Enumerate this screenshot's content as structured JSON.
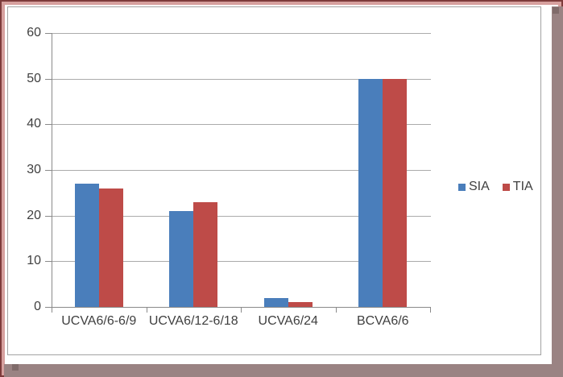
{
  "frame": {
    "outer_border_color": "#7E3B3B",
    "inner_border_color": "#D7A09E",
    "shadow_color": "#9A8383",
    "shadow_notch_color": "#806B6A",
    "box_border_color": "#A3A3A3",
    "background": "#FFFFFF"
  },
  "chart_data": {
    "type": "bar",
    "categories": [
      "UCVA6/6-6/9",
      "UCVA6/12-6/18",
      "UCVA6/24",
      "BCVA6/6"
    ],
    "series": [
      {
        "name": "SIA",
        "color": "#4A7EBB",
        "values": [
          27,
          21,
          2,
          50
        ]
      },
      {
        "name": "TIA",
        "color": "#BE4B48",
        "values": [
          26,
          23,
          1,
          50
        ]
      }
    ],
    "title": "",
    "xlabel": "",
    "ylabel": "",
    "ylim": [
      0,
      60
    ],
    "ytick_step": 10,
    "yticks": [
      0,
      10,
      20,
      30,
      40,
      50,
      60
    ],
    "grid": true,
    "legend_position": "right-middle",
    "gridline_color": "#ABABAB",
    "axis_color": "#8A8A8A",
    "text_color": "#3F3F3F"
  }
}
